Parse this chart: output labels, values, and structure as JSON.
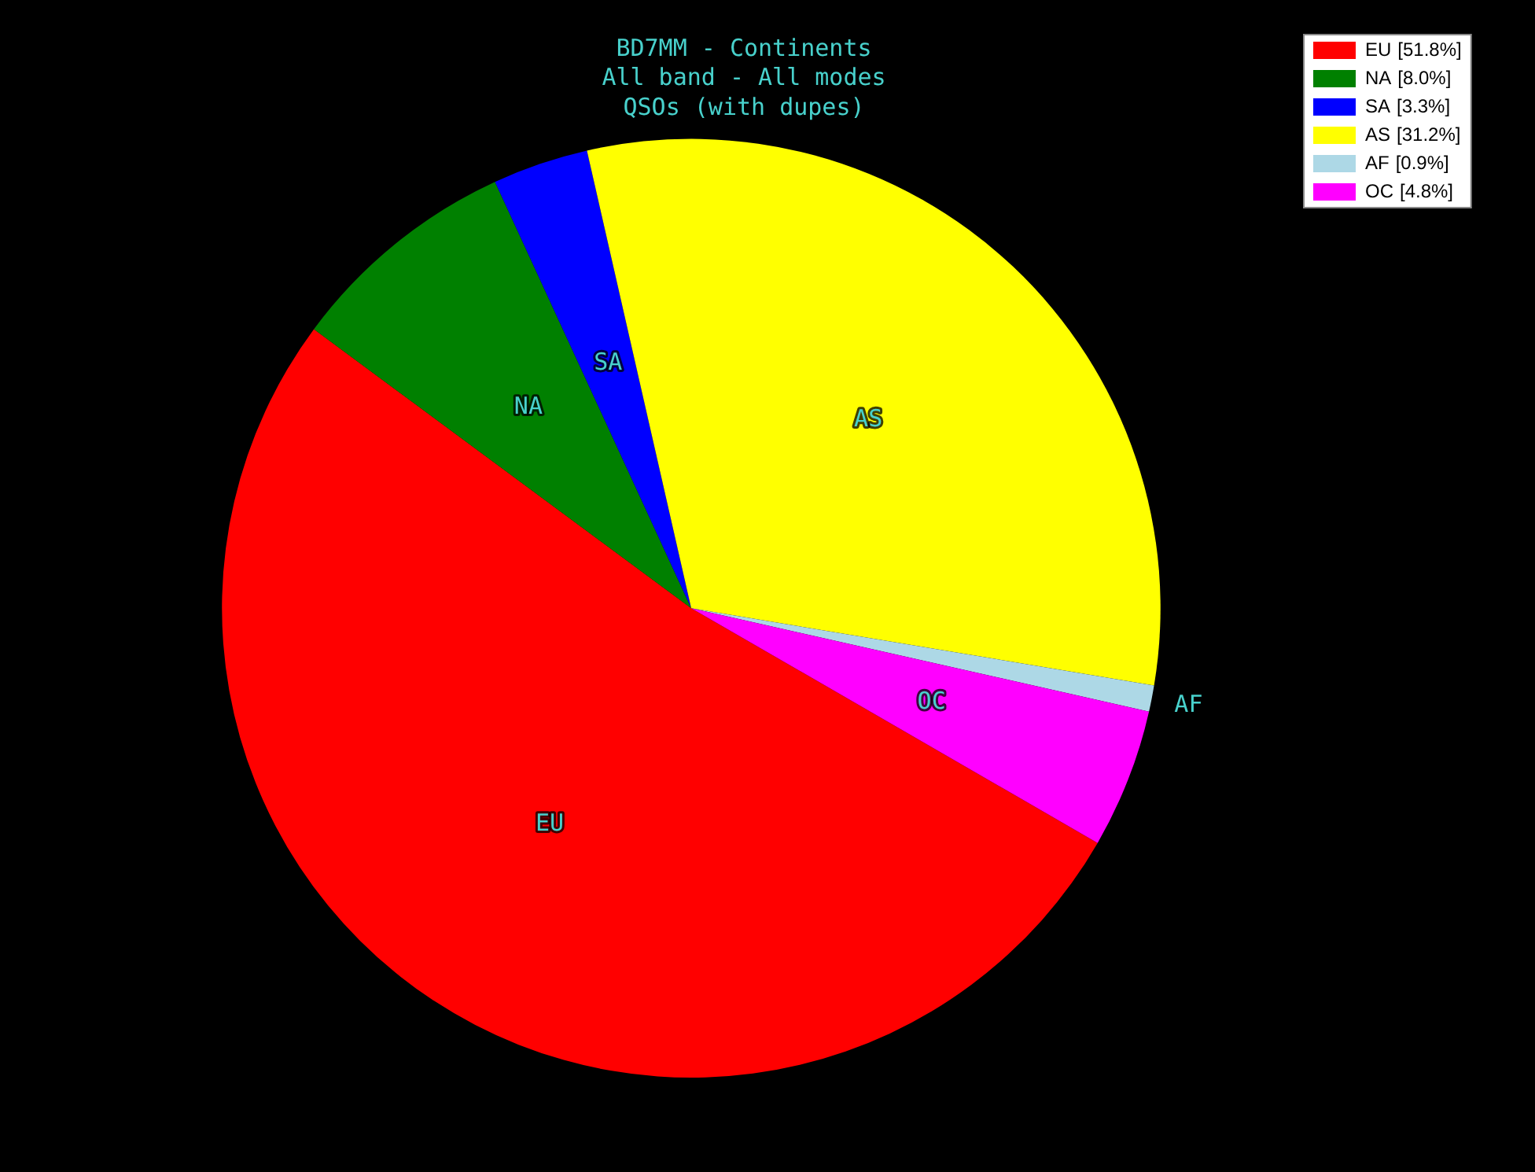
{
  "chart_data": {
    "type": "pie",
    "title": "BD7MM - Continents",
    "subtitle": "All band - All modes\nQSOs (with dupes)",
    "categories": [
      "EU",
      "NA",
      "SA",
      "AS",
      "AF",
      "OC"
    ],
    "values": [
      51.8,
      8.0,
      3.3,
      31.2,
      0.9,
      4.8
    ],
    "value_labels": [
      "[51.8%]",
      "[8.0%]",
      "[3.3%]",
      "[31.2%]",
      "[0.9%]",
      "[4.8%]"
    ],
    "colors": [
      "#ff0000",
      "#008000",
      "#0000ff",
      "#ffff00",
      "#add8e6",
      "#ff00ff"
    ],
    "legend": "top right"
  }
}
